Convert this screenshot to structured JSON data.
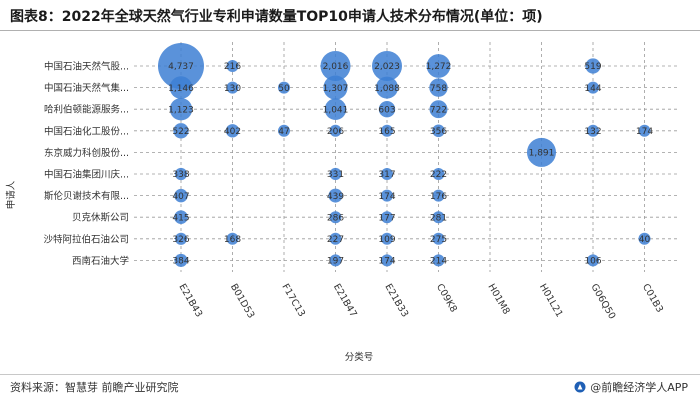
{
  "title": "图表8：2022年全球天然气行业专利申请数量TOP10申请人技术分布情况(单位：项)",
  "source": "资料来源：智慧芽 前瞻产业研究院",
  "brand": "@前瞻经济学人APP",
  "colors": {
    "bubble": "#3d7fd4",
    "grid": "#9a9a9a"
  },
  "chart_data": {
    "type": "scatter",
    "xlabel": "分类号",
    "ylabel": "申请人",
    "x_categories": [
      "E21B43",
      "B01D53",
      "F17C13",
      "E21B47",
      "E21B33",
      "C09K8",
      "H01M8",
      "H01L21",
      "G06Q50",
      "C01B3"
    ],
    "y_categories": [
      "中国石油天然气股...",
      "中国石油天然气集...",
      "哈利伯顿能源服务...",
      "中国石油化工股份...",
      "东京威力科创股份...",
      "中国石油集团川庆...",
      "斯伦贝谢技术有限...",
      "贝克休斯公司",
      "沙特阿拉伯石油公司",
      "西南石油大学"
    ],
    "grid": true,
    "points": [
      {
        "x": "E21B43",
        "y": "中国石油天然气股...",
        "value": "4,737"
      },
      {
        "x": "B01D53",
        "y": "中国石油天然气股...",
        "value": "216"
      },
      {
        "x": "E21B47",
        "y": "中国石油天然气股...",
        "value": "2,016"
      },
      {
        "x": "E21B33",
        "y": "中国石油天然气股...",
        "value": "2,023"
      },
      {
        "x": "C09K8",
        "y": "中国石油天然气股...",
        "value": "1,272"
      },
      {
        "x": "G06Q50",
        "y": "中国石油天然气股...",
        "value": "519"
      },
      {
        "x": "E21B43",
        "y": "中国石油天然气集...",
        "value": "1,146"
      },
      {
        "x": "B01D53",
        "y": "中国石油天然气集...",
        "value": "130"
      },
      {
        "x": "F17C13",
        "y": "中国石油天然气集...",
        "value": "50"
      },
      {
        "x": "E21B47",
        "y": "中国石油天然气集...",
        "value": "1,307"
      },
      {
        "x": "E21B33",
        "y": "中国石油天然气集...",
        "value": "1,088"
      },
      {
        "x": "C09K8",
        "y": "中国石油天然气集...",
        "value": "758"
      },
      {
        "x": "G06Q50",
        "y": "中国石油天然气集...",
        "value": "144"
      },
      {
        "x": "E21B43",
        "y": "哈利伯顿能源服务...",
        "value": "1,123"
      },
      {
        "x": "E21B47",
        "y": "哈利伯顿能源服务...",
        "value": "1,041"
      },
      {
        "x": "E21B33",
        "y": "哈利伯顿能源服务...",
        "value": "603"
      },
      {
        "x": "C09K8",
        "y": "哈利伯顿能源服务...",
        "value": "722"
      },
      {
        "x": "E21B43",
        "y": "中国石油化工股份...",
        "value": "522"
      },
      {
        "x": "B01D53",
        "y": "中国石油化工股份...",
        "value": "402"
      },
      {
        "x": "F17C13",
        "y": "中国石油化工股份...",
        "value": "47"
      },
      {
        "x": "E21B47",
        "y": "中国石油化工股份...",
        "value": "206"
      },
      {
        "x": "E21B33",
        "y": "中国石油化工股份...",
        "value": "165"
      },
      {
        "x": "C09K8",
        "y": "中国石油化工股份...",
        "value": "356"
      },
      {
        "x": "G06Q50",
        "y": "中国石油化工股份...",
        "value": "132"
      },
      {
        "x": "C01B3",
        "y": "中国石油化工股份...",
        "value": "174"
      },
      {
        "x": "H01L21",
        "y": "东京威力科创股份...",
        "value": "1,891"
      },
      {
        "x": "E21B43",
        "y": "中国石油集团川庆...",
        "value": "338"
      },
      {
        "x": "E21B47",
        "y": "中国石油集团川庆...",
        "value": "331"
      },
      {
        "x": "E21B33",
        "y": "中国石油集团川庆...",
        "value": "317"
      },
      {
        "x": "C09K8",
        "y": "中国石油集团川庆...",
        "value": "222"
      },
      {
        "x": "E21B43",
        "y": "斯伦贝谢技术有限...",
        "value": "407"
      },
      {
        "x": "E21B47",
        "y": "斯伦贝谢技术有限...",
        "value": "439"
      },
      {
        "x": "E21B33",
        "y": "斯伦贝谢技术有限...",
        "value": "174"
      },
      {
        "x": "C09K8",
        "y": "斯伦贝谢技术有限...",
        "value": "176"
      },
      {
        "x": "E21B43",
        "y": "贝克休斯公司",
        "value": "415"
      },
      {
        "x": "E21B47",
        "y": "贝克休斯公司",
        "value": "286"
      },
      {
        "x": "E21B33",
        "y": "贝克休斯公司",
        "value": "177"
      },
      {
        "x": "C09K8",
        "y": "贝克休斯公司",
        "value": "281"
      },
      {
        "x": "E21B43",
        "y": "沙特阿拉伯石油公司",
        "value": "326"
      },
      {
        "x": "B01D53",
        "y": "沙特阿拉伯石油公司",
        "value": "168"
      },
      {
        "x": "E21B47",
        "y": "沙特阿拉伯石油公司",
        "value": "227"
      },
      {
        "x": "E21B33",
        "y": "沙特阿拉伯石油公司",
        "value": "109"
      },
      {
        "x": "C09K8",
        "y": "沙特阿拉伯石油公司",
        "value": "275"
      },
      {
        "x": "C01B3",
        "y": "沙特阿拉伯石油公司",
        "value": "40"
      },
      {
        "x": "E21B43",
        "y": "西南石油大学",
        "value": "384"
      },
      {
        "x": "E21B47",
        "y": "西南石油大学",
        "value": "197"
      },
      {
        "x": "E21B33",
        "y": "西南石油大学",
        "value": "174"
      },
      {
        "x": "C09K8",
        "y": "西南石油大学",
        "value": "214"
      },
      {
        "x": "G06Q50",
        "y": "西南石油大学",
        "value": "106"
      }
    ]
  }
}
